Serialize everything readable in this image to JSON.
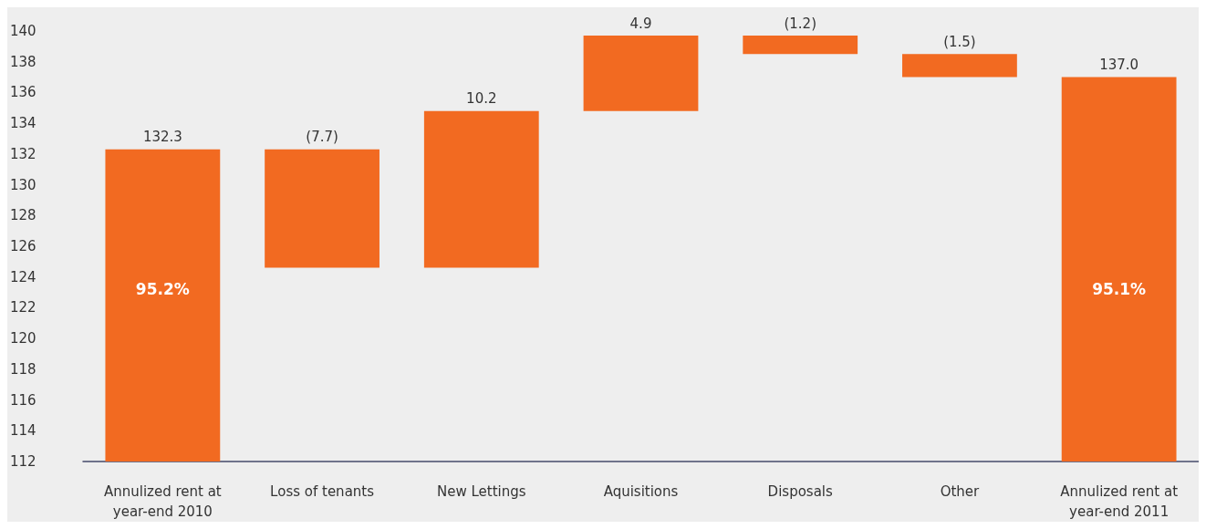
{
  "chart_data": {
    "type": "bar",
    "categories": [
      "Annulized rent at\nyear-end 2010",
      "Loss of tenants",
      "New Lettings",
      "Aquisitions",
      "Disposals",
      "Other",
      "Annulized rent at\nyear-end 2011"
    ],
    "values": [
      132.3,
      -7.7,
      10.2,
      4.9,
      -1.2,
      -1.5,
      137.0
    ],
    "base": [
      null,
      132.3,
      124.6,
      134.8,
      139.7,
      138.5,
      null
    ],
    "value_labels": [
      "132.3",
      "(7.7)",
      "10.2",
      "4.9",
      "(1.2)",
      "(1.5)",
      "137.0"
    ],
    "color": "#f26a21",
    "ylim": [
      112,
      140
    ],
    "yticks": [
      112,
      114,
      116,
      118,
      120,
      122,
      124,
      126,
      128,
      130,
      132,
      134,
      136,
      138,
      140
    ],
    "annotations": [
      "95.2%",
      "95.1%"
    ],
    "grid": false
  }
}
